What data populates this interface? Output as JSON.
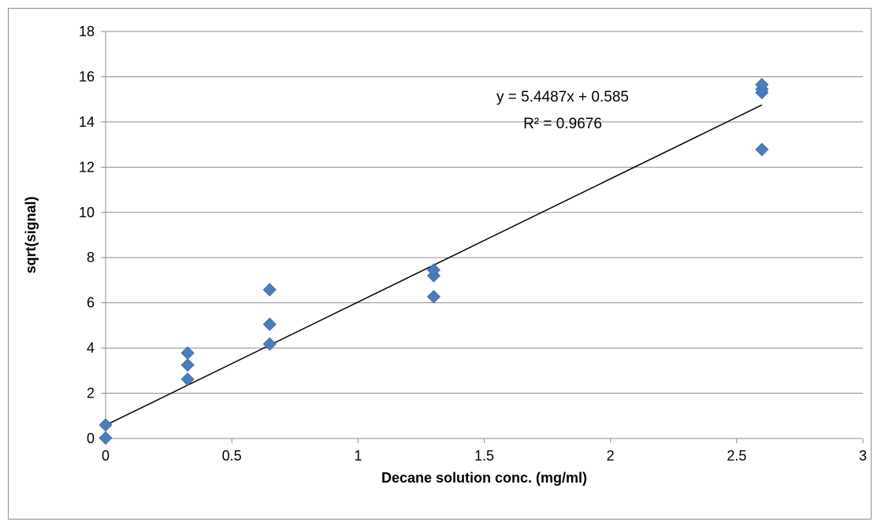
{
  "chart_data": {
    "type": "scatter",
    "title": "",
    "xlabel": "Decane solution conc. (mg/ml)",
    "ylabel": "sqrt(signal)",
    "xlim": [
      0,
      3
    ],
    "ylim": [
      0,
      18
    ],
    "x_ticks": [
      "0",
      "0.5",
      "1",
      "1.5",
      "2",
      "2.5",
      "3"
    ],
    "x_tick_values": [
      0,
      0.5,
      1,
      1.5,
      2,
      2.5,
      3
    ],
    "y_ticks": [
      "0",
      "2",
      "4",
      "6",
      "8",
      "10",
      "12",
      "14",
      "16",
      "18"
    ],
    "y_tick_values": [
      0,
      2,
      4,
      6,
      8,
      10,
      12,
      14,
      16,
      18
    ],
    "grid": "horizontal",
    "legend": "none",
    "marker_color": "#4a7ebb",
    "series": [
      {
        "x": [
          0,
          0,
          0.325,
          0.325,
          0.325,
          0.65,
          0.65,
          0.65,
          1.3,
          1.3,
          1.3,
          2.6,
          2.6,
          2.6,
          2.6
        ],
        "y": [
          0.6,
          0.02,
          2.62,
          3.25,
          3.78,
          4.18,
          5.05,
          6.58,
          6.27,
          7.2,
          7.45,
          12.78,
          15.3,
          15.45,
          15.65
        ]
      }
    ],
    "trendline": {
      "slope": 5.4487,
      "intercept": 0.585,
      "x_range": [
        0,
        2.6
      ],
      "equation_label": "y = 5.4487x + 0.585",
      "r2_label": "R² = 0.9676"
    }
  }
}
